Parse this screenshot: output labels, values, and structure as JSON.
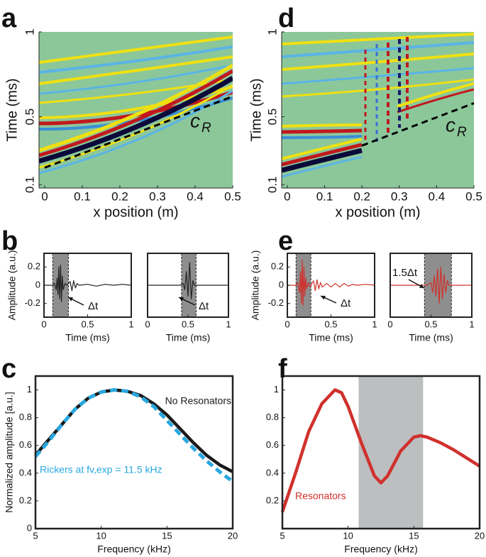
{
  "chart_data": [
    {
      "type": "heatmap",
      "panel": "a",
      "xlabel": "x position (m)",
      "ylabel": "Time (ms)",
      "xlim": [
        -0.015,
        0.5
      ],
      "xticks": [
        0,
        0.1,
        0.2,
        0.3,
        0.4,
        0.5
      ],
      "ylim": [
        0.08,
        1
      ],
      "yticks": [
        0.1,
        0.5,
        1
      ],
      "front": {
        "x": [
          0,
          0.5
        ],
        "y": [
          0.2,
          0.62
        ],
        "color": "#000000"
      },
      "annotation": {
        "text": "c",
        "subscript": "R"
      }
    },
    {
      "type": "line",
      "panel": "b",
      "xlabel": "Time (ms)",
      "ylabel": "Amplitude (a.u.)",
      "xlim": [
        0,
        1
      ],
      "xticks": [
        0,
        0.5,
        1
      ],
      "ylim": [
        -0.35,
        0.35
      ],
      "yticks": [
        -0.2,
        0,
        0.2
      ],
      "shaded": [
        0.1,
        0.28
      ],
      "x": [
        0,
        0.1,
        0.12,
        0.14,
        0.15,
        0.16,
        0.17,
        0.18,
        0.19,
        0.2,
        0.21,
        0.22,
        0.24,
        0.26,
        0.3,
        0.32,
        0.34,
        0.36,
        0.38,
        0.4,
        0.5,
        0.6,
        0.7,
        0.8,
        0.9,
        1
      ],
      "series": [
        {
          "color": "#222222",
          "values": [
            0,
            0,
            0.02,
            -0.05,
            0.08,
            -0.1,
            0.2,
            -0.15,
            0.22,
            -0.18,
            0.1,
            -0.05,
            0.02,
            0,
            0.04,
            -0.06,
            0.05,
            -0.03,
            0.02,
            0,
            0.01,
            -0.01,
            0.01,
            0,
            0.01,
            0
          ]
        }
      ],
      "annotation": {
        "text": "Δt"
      }
    },
    {
      "type": "line",
      "xlabel": "Time (ms)",
      "xlim": [
        0,
        1
      ],
      "xticks": [
        0,
        0.5,
        1
      ],
      "ylim": [
        -0.35,
        0.35
      ],
      "shaded": [
        0.42,
        0.6
      ],
      "x": [
        0,
        0.4,
        0.44,
        0.46,
        0.48,
        0.5,
        0.52,
        0.54,
        0.56,
        0.58,
        1
      ],
      "series": [
        {
          "color": "#222222",
          "values": [
            0,
            0,
            0.02,
            -0.05,
            0.15,
            -0.12,
            0.25,
            -0.15,
            0.05,
            0,
            0
          ]
        }
      ],
      "annotation": {
        "text": "Δt"
      }
    },
    {
      "type": "line",
      "panel": "c",
      "xlabel": "Frequency (kHz)",
      "ylabel": "Normalized amplitude [a.u.]",
      "xlim": [
        5,
        20
      ],
      "xticks": [
        5,
        10,
        15,
        20
      ],
      "ylim": [
        0,
        1.1
      ],
      "yticks": [
        0,
        0.2,
        0.4,
        0.6,
        0.8,
        1
      ],
      "x": [
        5,
        6,
        7,
        8,
        9,
        10,
        11,
        12,
        13,
        14,
        15,
        16,
        17,
        18,
        19,
        20
      ],
      "series": [
        {
          "name": "No Resonators",
          "color": "#1a1a1a",
          "values": [
            0.53,
            0.64,
            0.75,
            0.86,
            0.94,
            0.985,
            1.0,
            0.99,
            0.96,
            0.9,
            0.82,
            0.72,
            0.62,
            0.53,
            0.46,
            0.41
          ]
        },
        {
          "name": "Rickers at fv,exp = 11.5 kHz",
          "color": "#29a8e0",
          "dashed": true,
          "values": [
            0.52,
            0.63,
            0.75,
            0.86,
            0.94,
            0.985,
            1.0,
            0.99,
            0.95,
            0.88,
            0.78,
            0.68,
            0.58,
            0.49,
            0.41,
            0.34
          ]
        }
      ]
    },
    {
      "type": "heatmap",
      "panel": "d",
      "xlabel": "x position (m)",
      "ylabel": "Time (ms)",
      "xlim": [
        -0.015,
        0.5
      ],
      "xticks": [
        0,
        0.1,
        0.2,
        0.3,
        0.4,
        0.5
      ],
      "ylim": [
        0.08,
        1
      ],
      "yticks": [
        0.1,
        0.5,
        1
      ],
      "front": {
        "x": [
          0.2,
          0.5
        ],
        "y": [
          0.33,
          0.58
        ],
        "color": "#000000"
      },
      "annotation": {
        "text": "c",
        "subscript": "R"
      }
    },
    {
      "type": "line",
      "panel": "e",
      "xlabel": "Time (ms)",
      "ylabel": "Amplitude (a.u.)",
      "xlim": [
        0,
        1
      ],
      "xticks": [
        0,
        0.5,
        1
      ],
      "ylim": [
        -0.35,
        0.35
      ],
      "yticks": [
        -0.2,
        0,
        0.2
      ],
      "shaded": [
        0.1,
        0.27
      ],
      "x": [
        0,
        0.1,
        0.12,
        0.14,
        0.15,
        0.16,
        0.17,
        0.18,
        0.19,
        0.2,
        0.21,
        0.22,
        0.24,
        0.26,
        0.3,
        0.32,
        0.34,
        0.36,
        0.38,
        0.4,
        0.45,
        0.5,
        0.55,
        0.6,
        0.65,
        0.7,
        0.75,
        0.8,
        0.9,
        1
      ],
      "series": [
        {
          "color": "#d0312d",
          "values": [
            0,
            0,
            0.03,
            -0.08,
            0.15,
            -0.2,
            0.28,
            -0.22,
            0.2,
            -0.12,
            0.08,
            -0.04,
            0.03,
            -0.02,
            0.05,
            -0.06,
            0.06,
            -0.04,
            0.03,
            -0.02,
            0.02,
            -0.02,
            0.02,
            -0.02,
            0.02,
            -0.01,
            0.01,
            0,
            0.01,
            0
          ]
        }
      ],
      "annotation": {
        "text": "Δt"
      }
    },
    {
      "type": "line",
      "xlabel": "Time (ms)",
      "xlim": [
        0,
        1
      ],
      "xticks": [
        0,
        0.5,
        1
      ],
      "ylim": [
        -0.35,
        0.35
      ],
      "shaded": [
        0.42,
        0.75
      ],
      "x": [
        0,
        0.45,
        0.5,
        0.52,
        0.54,
        0.56,
        0.58,
        0.6,
        0.62,
        0.64,
        0.66,
        0.68,
        0.7,
        0.72,
        1
      ],
      "series": [
        {
          "color": "#d0312d",
          "values": [
            0,
            0,
            0.03,
            -0.08,
            0.1,
            -0.12,
            0.18,
            -0.2,
            0.2,
            -0.15,
            0.12,
            -0.08,
            0.05,
            0,
            0
          ]
        }
      ],
      "annotation": {
        "text": "1.5Δt"
      }
    },
    {
      "type": "line",
      "panel": "f",
      "xlabel": "Frequency (kHz)",
      "xlim": [
        5,
        20
      ],
      "xticks": [
        5,
        10,
        15,
        20
      ],
      "ylim": [
        0,
        1.1
      ],
      "yticks": [
        0.2,
        0.4,
        0.6,
        0.8,
        1
      ],
      "shaded": [
        10.8,
        15.7
      ],
      "x": [
        5,
        6,
        7,
        8,
        9,
        9.5,
        10,
        11,
        12,
        12.5,
        13,
        14,
        15,
        15.5,
        16,
        17,
        18,
        19,
        20
      ],
      "series": [
        {
          "name": "Resonators",
          "color": "#d0312d",
          "values": [
            0.12,
            0.4,
            0.7,
            0.9,
            1.0,
            0.98,
            0.88,
            0.62,
            0.38,
            0.33,
            0.38,
            0.56,
            0.66,
            0.67,
            0.66,
            0.62,
            0.57,
            0.51,
            0.45
          ]
        }
      ]
    }
  ]
}
